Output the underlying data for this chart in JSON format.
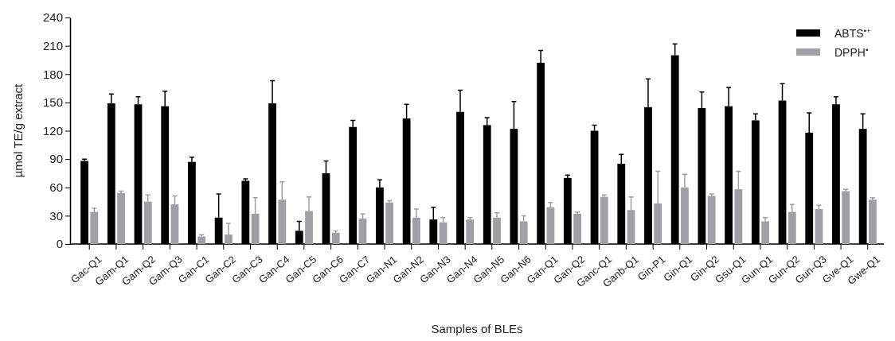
{
  "chart_data": {
    "type": "bar",
    "xlabel": "Samples of BLEs",
    "ylabel": "µmol TE/g extract",
    "categories": [
      "Gac-Q1",
      "Gam-Q1",
      "Gam-Q2",
      "Gam-Q3",
      "Gan-C1",
      "Gan-C2",
      "Gan-C3",
      "Gan-C4",
      "Gan-C5",
      "Gan-C6",
      "Gan-C7",
      "Gan-N1",
      "Gan-N2",
      "Gan-N3",
      "Gan-N4",
      "Gan-N5",
      "Gan-N6",
      "Gan-Q1",
      "Gan-Q2",
      "Ganc-Q1",
      "Ganb-Q1",
      "Gin-P1",
      "Gin-Q1",
      "Gin-Q2",
      "Gsu-Q1",
      "Gun-Q1",
      "Gun-Q2",
      "Gun-Q3",
      "Gve-Q1",
      "Gwe-Q1"
    ],
    "series": [
      {
        "name": "ABTS$^{•+}$",
        "color": "#000000",
        "values": [
          88,
          149,
          148,
          146,
          87,
          28,
          67,
          149,
          14,
          75,
          124,
          60,
          133,
          26,
          140,
          126,
          122,
          192,
          70,
          120,
          85,
          145,
          200,
          144,
          146,
          131,
          152,
          118,
          148,
          122
        ],
        "errors": [
          [
            88,
            90
          ],
          [
            149,
            159
          ],
          [
            148,
            156
          ],
          [
            146,
            162
          ],
          [
            87,
            92
          ],
          [
            28,
            53
          ],
          [
            67,
            69
          ],
          [
            149,
            173
          ],
          [
            14,
            24
          ],
          [
            75,
            88
          ],
          [
            124,
            131
          ],
          [
            60,
            68
          ],
          [
            133,
            148
          ],
          [
            26,
            39
          ],
          [
            140,
            163
          ],
          [
            126,
            134
          ],
          [
            122,
            151
          ],
          [
            192,
            205
          ],
          [
            70,
            73
          ],
          [
            120,
            126
          ],
          [
            85,
            95
          ],
          [
            145,
            175
          ],
          [
            200,
            212
          ],
          [
            144,
            161
          ],
          [
            146,
            166
          ],
          [
            131,
            138
          ],
          [
            152,
            170
          ],
          [
            118,
            139
          ],
          [
            148,
            156
          ],
          [
            122,
            138
          ]
        ]
      },
      {
        "name": "DPPH$^{•}$",
        "color": "#a0a0a4",
        "values": [
          34,
          54,
          45,
          42,
          8,
          10,
          32,
          47,
          35,
          12,
          27,
          44,
          28,
          23,
          26,
          28,
          24,
          39,
          32,
          50,
          36,
          43,
          60,
          51,
          58,
          24,
          34,
          37,
          56,
          47
        ],
        "errors": [
          [
            34,
            38
          ],
          [
            54,
            56
          ],
          [
            45,
            52
          ],
          [
            42,
            51
          ],
          [
            8,
            10
          ],
          [
            10,
            22
          ],
          [
            32,
            49
          ],
          [
            47,
            66
          ],
          [
            35,
            50
          ],
          [
            12,
            14
          ],
          [
            27,
            32
          ],
          [
            44,
            46
          ],
          [
            28,
            37
          ],
          [
            23,
            28
          ],
          [
            26,
            28
          ],
          [
            28,
            33
          ],
          [
            24,
            30
          ],
          [
            39,
            44
          ],
          [
            32,
            34
          ],
          [
            50,
            52
          ],
          [
            36,
            50
          ],
          [
            43,
            77
          ],
          [
            60,
            74
          ],
          [
            51,
            53
          ],
          [
            58,
            77
          ],
          [
            24,
            28
          ],
          [
            34,
            42
          ],
          [
            37,
            41
          ],
          [
            56,
            58
          ],
          [
            47,
            49
          ]
        ]
      }
    ],
    "ylim": [
      0,
      240
    ],
    "yticks": [
      0,
      30,
      60,
      90,
      120,
      150,
      180,
      210,
      240
    ],
    "grid": false,
    "legend": "top right"
  }
}
